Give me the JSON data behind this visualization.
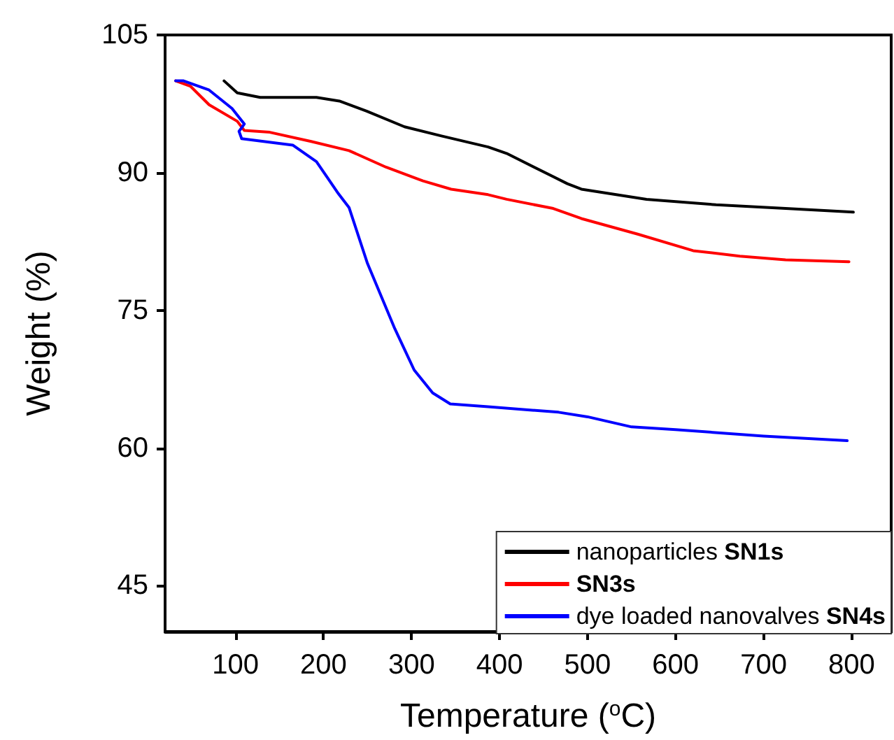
{
  "chart_data": {
    "type": "line",
    "xlabel": "Temperature ($^{o}$C)",
    "ylabel": "Weight (%)",
    "xlim": [
      20,
      845
    ],
    "xticks": [
      100,
      200,
      300,
      400,
      500,
      600,
      700,
      800
    ],
    "ylim": [
      40,
      105
    ],
    "yticks": [
      45,
      60,
      75,
      90,
      105
    ],
    "grid": false,
    "legend": "bottom right",
    "marker": "none",
    "line_style": "solid",
    "series": [
      {
        "name": "nanoparticles SN1s",
        "color": "#000000",
        "x": [
          87,
          102,
          128,
          192,
          218,
          249,
          292,
          334,
          387,
          408,
          477,
          493,
          567,
          646,
          725,
          802
        ],
        "values": [
          100,
          98.7,
          98.2,
          98.2,
          97.8,
          96.7,
          95.0,
          94.0,
          92.8,
          92.1,
          88.8,
          88.2,
          87.1,
          86.5,
          86.1,
          85.7
        ]
      },
      {
        "name": "SN3s",
        "color": "#ff0000",
        "x": [
          32,
          49,
          70,
          102,
          110,
          139,
          186,
          229,
          271,
          313,
          345,
          387,
          408,
          461,
          493,
          557,
          620,
          673,
          725,
          797
        ],
        "values": [
          100,
          99.4,
          97.4,
          95.6,
          94.6,
          94.4,
          93.4,
          92.4,
          90.6,
          89.1,
          88.2,
          87.6,
          87.1,
          86.1,
          85.0,
          83.3,
          81.5,
          80.9,
          80.5,
          80.3
        ]
      },
      {
        "name": "dye loaded nanovalves SN4s",
        "color": "#0000ff",
        "x": [
          32,
          41,
          70,
          96,
          110,
          104,
          107,
          165,
          192,
          217,
          229,
          250,
          281,
          303,
          324,
          344,
          387,
          467,
          500,
          550,
          600,
          700,
          795
        ],
        "values": [
          100,
          100,
          99.0,
          97.0,
          95.3,
          94.5,
          93.7,
          93.0,
          91.2,
          87.7,
          86.2,
          80.1,
          73.0,
          68.5,
          66.0,
          64.8,
          64.5,
          63.9,
          63.4,
          62.3,
          62.0,
          61.3,
          60.8
        ]
      }
    ]
  }
}
